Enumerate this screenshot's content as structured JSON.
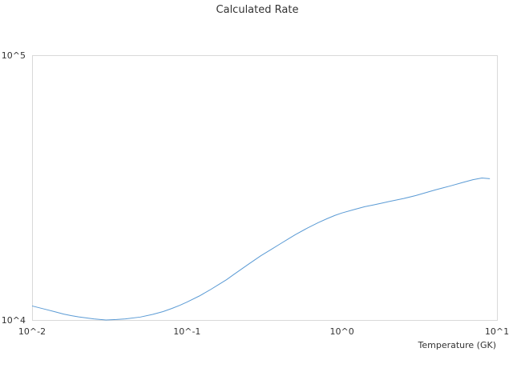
{
  "chart_data": {
    "type": "line",
    "title": "Calculated Rate",
    "xlabel": "Temperature (GK)",
    "ylabel": "",
    "x_scale": "log",
    "y_scale": "log",
    "xlim": [
      0.01,
      10
    ],
    "ylim": [
      10000,
      100000
    ],
    "x_tick_labels": [
      "10^-2",
      "10^-1",
      "10^0",
      "10^1"
    ],
    "y_tick_labels": [
      "10^4",
      "10^5"
    ],
    "grid": false,
    "legend": "none",
    "series": [
      {
        "color": "#5b9bd5",
        "x": [
          0.01,
          0.012,
          0.014,
          0.016,
          0.018,
          0.02,
          0.025,
          0.03,
          0.035,
          0.04,
          0.05,
          0.06,
          0.07,
          0.08,
          0.09,
          0.1,
          0.12,
          0.14,
          0.16,
          0.18,
          0.2,
          0.25,
          0.3,
          0.35,
          0.4,
          0.45,
          0.5,
          0.6,
          0.7,
          0.8,
          0.9,
          1.0,
          1.2,
          1.4,
          1.6,
          1.8,
          2.0,
          2.5,
          3.0,
          3.5,
          4.0,
          4.5,
          5.0,
          6.0,
          7.0,
          8.0,
          9.0
        ],
        "y": [
          11300,
          11000,
          10750,
          10530,
          10380,
          10270,
          10100,
          10000,
          10040,
          10100,
          10260,
          10500,
          10760,
          11060,
          11370,
          11690,
          12320,
          12970,
          13610,
          14200,
          14850,
          16270,
          17500,
          18480,
          19400,
          20240,
          21000,
          22270,
          23300,
          24130,
          24830,
          25370,
          26140,
          26780,
          27210,
          27620,
          27990,
          28760,
          29530,
          30310,
          30990,
          31560,
          32080,
          33050,
          33860,
          34380,
          34180
        ]
      }
    ]
  }
}
